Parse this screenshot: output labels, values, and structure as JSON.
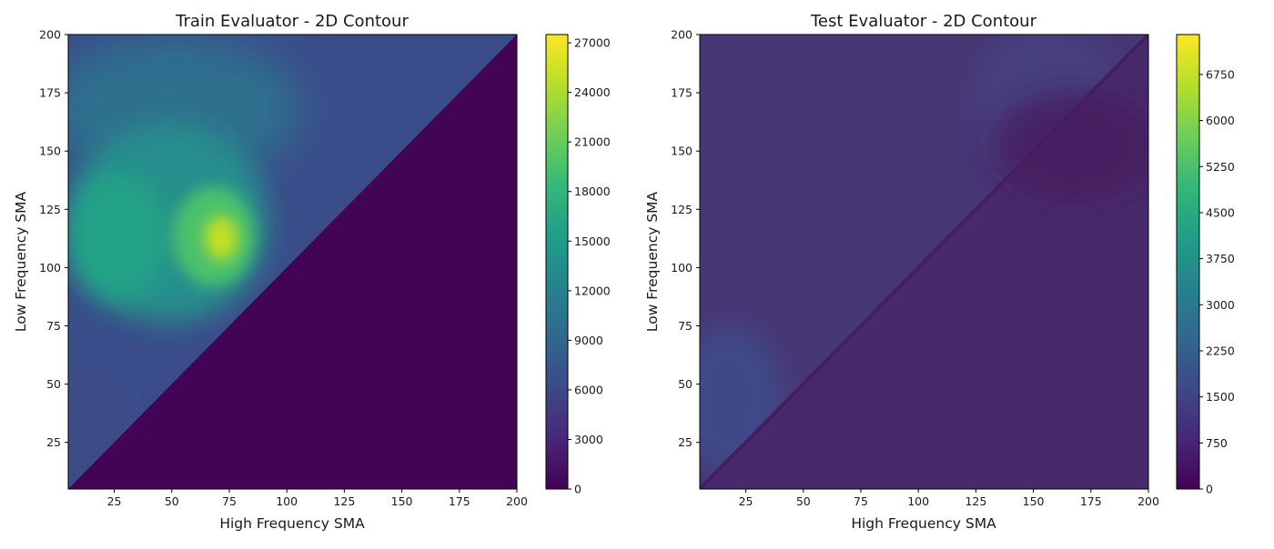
{
  "chart_data": [
    {
      "type": "heatmap",
      "subtype": "filled-contour",
      "title": "Train Evaluator - 2D Contour",
      "xlabel": "High Frequency SMA",
      "ylabel": "Low Frequency SMA",
      "xlim": [
        5,
        200
      ],
      "ylim": [
        5,
        200
      ],
      "xticks": [
        25,
        50,
        75,
        100,
        125,
        150,
        175,
        200
      ],
      "yticks": [
        25,
        50,
        75,
        100,
        125,
        150,
        175,
        200
      ],
      "colormap": "viridis",
      "colorbar": {
        "range": [
          0,
          27500
        ],
        "ticks": [
          0,
          3000,
          6000,
          9000,
          12000,
          15000,
          18000,
          21000,
          24000,
          27000
        ]
      },
      "grid": false
    },
    {
      "type": "heatmap",
      "subtype": "filled-contour",
      "title": "Test Evaluator - 2D Contour",
      "xlabel": "High Frequency SMA",
      "ylabel": "Low Frequency SMA",
      "xlim": [
        5,
        200
      ],
      "ylim": [
        5,
        200
      ],
      "xticks": [
        25,
        50,
        75,
        100,
        125,
        150,
        175,
        200
      ],
      "yticks": [
        25,
        50,
        75,
        100,
        125,
        150,
        175,
        200
      ],
      "colormap": "viridis",
      "colorbar": {
        "range": [
          0,
          7400
        ],
        "ticks": [
          0,
          750,
          1500,
          2250,
          3000,
          3750,
          4500,
          5250,
          6000,
          6750
        ]
      },
      "grid": false
    }
  ]
}
